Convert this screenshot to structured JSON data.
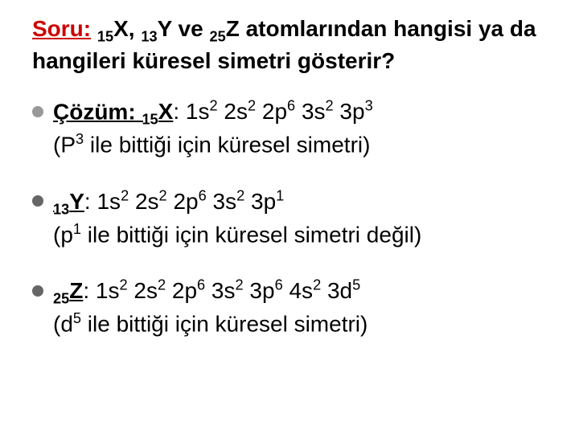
{
  "colors": {
    "background": "#ffffff",
    "text": "#000000",
    "question_label": "#cc0000",
    "bullet_answer": "#999999",
    "bullet_item": "#666666"
  },
  "typography": {
    "font_family": "Arial",
    "question_fontsize_pt": 21,
    "body_fontsize_pt": 21,
    "question_weight": "bold"
  },
  "question": {
    "label": "Soru:",
    "text_html": " <sub>15</sub>X, <sub>13</sub>Y ve <sub>25</sub>Z atomlarından hangisi ya da hangileri küresel simetri gösterir?"
  },
  "items": [
    {
      "bullet_color": "#999999",
      "prefix_label": "Çözüm:",
      "element_html": " <sub>15</sub>X",
      "config_html": ": 1s<sup>2</sup> 2s<sup>2</sup> 2p<sup>6</sup> 3s<sup>2</sup> 3p<sup>3</sup>",
      "note_html": "(P<sup>3</sup> ile bittiği için küresel simetri)"
    },
    {
      "bullet_color": "#666666",
      "prefix_label": "",
      "element_html": "<sub>13</sub>Y",
      "config_html": ": 1s<sup>2</sup> 2s<sup>2</sup> 2p<sup>6</sup> 3s<sup>2</sup> 3p<sup>1</sup>",
      "note_html": "(p<sup>1</sup> ile bittiği için küresel simetri değil)"
    },
    {
      "bullet_color": "#666666",
      "prefix_label": "",
      "element_html": "<sub>25</sub>Z",
      "config_html": ": 1s<sup>2</sup> 2s<sup>2</sup> 2p<sup>6</sup> 3s<sup>2</sup> 3p<sup>6</sup> 4s<sup>2</sup> 3d<sup>5</sup>",
      "note_html": "(d<sup>5</sup> ile bittiği için küresel simetri)"
    }
  ]
}
